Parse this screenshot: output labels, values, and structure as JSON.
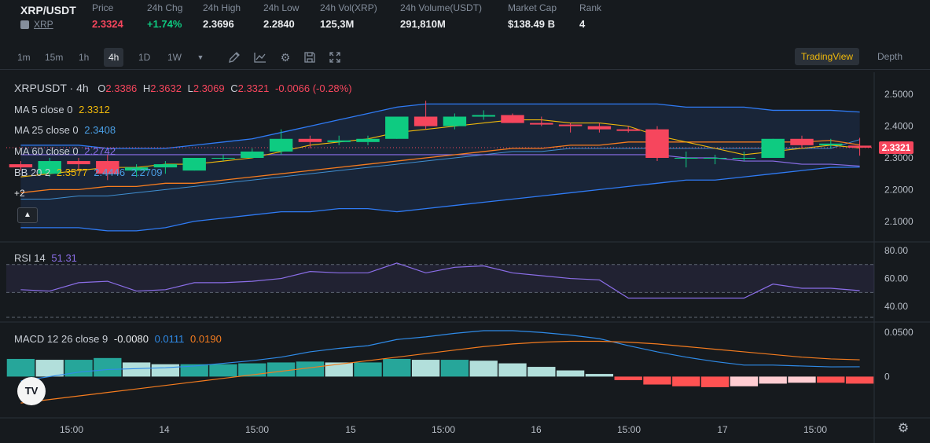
{
  "ticker": {
    "symbol": "XRP/USDT",
    "coin_link": "XRP",
    "stats": [
      {
        "label": "Price",
        "value": "2.3324",
        "color": "red"
      },
      {
        "label": "24h Chg",
        "value": "+1.74%",
        "color": "green"
      },
      {
        "label": "24h High",
        "value": "2.3696",
        "color": ""
      },
      {
        "label": "24h Low",
        "value": "2.2840",
        "color": ""
      },
      {
        "label": "24h Vol(XRP)",
        "value": "125,3M",
        "color": ""
      },
      {
        "label": "24h Volume(USDT)",
        "value": "291,810M",
        "color": ""
      },
      {
        "label": "Market Cap",
        "value": "$138.49 B",
        "color": ""
      },
      {
        "label": "Rank",
        "value": "4",
        "color": ""
      }
    ]
  },
  "toolbar": {
    "timeframes": [
      "1m",
      "15m",
      "1h",
      "4h",
      "1D",
      "1W"
    ],
    "active_timeframe": "4h",
    "icons": [
      "chevron-down-icon",
      "pencil-icon",
      "indicator-icon",
      "gear-icon",
      "save-icon",
      "expand-icon"
    ],
    "view_tradingview": "TradingView",
    "view_depth": "Depth"
  },
  "legend": {
    "symbol_line": "XRPUSDT · 4h",
    "o_label": "O",
    "o_value": "2.3386",
    "h_label": "H",
    "h_value": "2.3632",
    "l_label": "L",
    "l_value": "2.3069",
    "c_label": "C",
    "c_value": "2.3321",
    "change": "-0.0066 (-0.28%)",
    "ma5_label": "MA 5 close 0",
    "ma5_value": "2.3312",
    "ma25_label": "MA 25 close 0",
    "ma25_value": "2.3408",
    "ma60_label": "MA 60 close 0",
    "ma60_value": "2.2742",
    "bb_label": "BB 20 2",
    "bb_mid": "2.3577",
    "bb_up": "2.4446",
    "bb_low": "2.2709",
    "more": "+2",
    "rsi_label": "RSI 14",
    "rsi_value": "51.31",
    "macd_label": "MACD 12 26 close 9",
    "macd_value": "-0.0080",
    "macd_signal": "0.0111",
    "macd_hist": "0.0190"
  },
  "price_axis": [
    "2.5000",
    "2.4000",
    "2.3000",
    "2.2000",
    "2.1000"
  ],
  "rsi_axis": [
    "80.00",
    "60.00",
    "40.00"
  ],
  "macd_axis": [
    "0.0500",
    "0"
  ],
  "time_axis": [
    "15:00",
    "14",
    "15:00",
    "15",
    "15:00",
    "16",
    "15:00",
    "17",
    "15:00"
  ],
  "last_price_tag": "2.3321",
  "colors": {
    "up": "#0ecb81",
    "down": "#f6465d",
    "ma5": "#f0b90b",
    "ma25": "#4a9fe5",
    "ma60": "#8b6ee8",
    "bb": "#2f7bf5",
    "rsi": "#8b6ee8",
    "macd": "#2f8be8",
    "signal": "#f57c1f"
  },
  "chart_data": {
    "type": "candlestick",
    "candles": [
      {
        "o": 2.28,
        "h": 2.29,
        "l": 2.26,
        "c": 2.27
      },
      {
        "o": 2.25,
        "h": 2.3,
        "l": 2.24,
        "c": 2.29
      },
      {
        "o": 2.29,
        "h": 2.3,
        "l": 2.26,
        "c": 2.28
      },
      {
        "o": 2.29,
        "h": 2.31,
        "l": 2.23,
        "c": 2.25
      },
      {
        "o": 2.26,
        "h": 2.28,
        "l": 2.24,
        "c": 2.27
      },
      {
        "o": 2.27,
        "h": 2.29,
        "l": 2.25,
        "c": 2.28
      },
      {
        "o": 2.26,
        "h": 2.3,
        "l": 2.26,
        "c": 2.3
      },
      {
        "o": 2.3,
        "h": 2.31,
        "l": 2.29,
        "c": 2.3
      },
      {
        "o": 2.3,
        "h": 2.33,
        "l": 2.3,
        "c": 2.32
      },
      {
        "o": 2.32,
        "h": 2.39,
        "l": 2.31,
        "c": 2.36
      },
      {
        "o": 2.36,
        "h": 2.37,
        "l": 2.33,
        "c": 2.35
      },
      {
        "o": 2.35,
        "h": 2.37,
        "l": 2.34,
        "c": 2.355
      },
      {
        "o": 2.35,
        "h": 2.37,
        "l": 2.34,
        "c": 2.36
      },
      {
        "o": 2.36,
        "h": 2.43,
        "l": 2.36,
        "c": 2.43
      },
      {
        "o": 2.43,
        "h": 2.48,
        "l": 2.39,
        "c": 2.4
      },
      {
        "o": 2.4,
        "h": 2.44,
        "l": 2.39,
        "c": 2.43
      },
      {
        "o": 2.43,
        "h": 2.45,
        "l": 2.42,
        "c": 2.435
      },
      {
        "o": 2.435,
        "h": 2.44,
        "l": 2.41,
        "c": 2.41
      },
      {
        "o": 2.41,
        "h": 2.43,
        "l": 2.4,
        "c": 2.405
      },
      {
        "o": 2.405,
        "h": 2.41,
        "l": 2.38,
        "c": 2.4
      },
      {
        "o": 2.4,
        "h": 2.41,
        "l": 2.38,
        "c": 2.39
      },
      {
        "o": 2.39,
        "h": 2.4,
        "l": 2.38,
        "c": 2.385
      },
      {
        "o": 2.39,
        "h": 2.4,
        "l": 2.29,
        "c": 2.3
      },
      {
        "o": 2.3,
        "h": 2.32,
        "l": 2.27,
        "c": 2.3
      },
      {
        "o": 2.3,
        "h": 2.31,
        "l": 2.28,
        "c": 2.3
      },
      {
        "o": 2.3,
        "h": 2.32,
        "l": 2.29,
        "c": 2.3
      },
      {
        "o": 2.3,
        "h": 2.36,
        "l": 2.3,
        "c": 2.36
      },
      {
        "o": 2.36,
        "h": 2.37,
        "l": 2.33,
        "c": 2.34
      },
      {
        "o": 2.34,
        "h": 2.36,
        "l": 2.33,
        "c": 2.345
      },
      {
        "o": 2.3386,
        "h": 2.3632,
        "l": 2.3069,
        "c": 2.3321
      }
    ],
    "ma5": [
      2.24,
      2.25,
      2.26,
      2.27,
      2.27,
      2.28,
      2.28,
      2.29,
      2.3,
      2.32,
      2.34,
      2.35,
      2.36,
      2.38,
      2.39,
      2.4,
      2.41,
      2.42,
      2.42,
      2.41,
      2.41,
      2.4,
      2.37,
      2.35,
      2.33,
      2.31,
      2.32,
      2.33,
      2.34,
      2.3312
    ],
    "ma25": [
      2.19,
      2.2,
      2.2,
      2.21,
      2.21,
      2.22,
      2.22,
      2.23,
      2.24,
      2.25,
      2.26,
      2.27,
      2.28,
      2.29,
      2.3,
      2.31,
      2.32,
      2.33,
      2.33,
      2.34,
      2.34,
      2.35,
      2.35,
      2.35,
      2.35,
      2.35,
      2.35,
      2.35,
      2.355,
      2.3408
    ],
    "ma60": [
      2.31,
      2.31,
      2.31,
      2.31,
      2.31,
      2.31,
      2.31,
      2.31,
      2.31,
      2.31,
      2.31,
      2.31,
      2.31,
      2.31,
      2.31,
      2.31,
      2.31,
      2.31,
      2.31,
      2.31,
      2.31,
      2.31,
      2.31,
      2.3,
      2.3,
      2.29,
      2.29,
      2.28,
      2.28,
      2.2742
    ],
    "bb_up": [
      2.34,
      2.34,
      2.34,
      2.33,
      2.33,
      2.33,
      2.34,
      2.35,
      2.36,
      2.38,
      2.4,
      2.42,
      2.44,
      2.46,
      2.47,
      2.47,
      2.47,
      2.47,
      2.47,
      2.47,
      2.47,
      2.47,
      2.47,
      2.46,
      2.46,
      2.46,
      2.45,
      2.45,
      2.45,
      2.4446
    ],
    "bb_mid": [
      2.17,
      2.17,
      2.18,
      2.18,
      2.19,
      2.2,
      2.21,
      2.22,
      2.23,
      2.24,
      2.25,
      2.26,
      2.27,
      2.28,
      2.29,
      2.3,
      2.31,
      2.32,
      2.32,
      2.33,
      2.33,
      2.33,
      2.33,
      2.33,
      2.33,
      2.33,
      2.33,
      2.33,
      2.33,
      2.3577
    ],
    "bb_low": [
      2.08,
      2.08,
      2.08,
      2.07,
      2.07,
      2.08,
      2.1,
      2.11,
      2.12,
      2.13,
      2.13,
      2.14,
      2.14,
      2.13,
      2.14,
      2.15,
      2.16,
      2.17,
      2.18,
      2.19,
      2.2,
      2.21,
      2.22,
      2.23,
      2.23,
      2.24,
      2.25,
      2.26,
      2.27,
      2.2709
    ],
    "rsi": [
      52,
      51,
      57,
      58,
      51,
      52,
      57,
      57,
      58,
      60,
      65,
      64,
      64,
      71,
      64,
      68,
      69,
      64,
      62,
      60,
      59,
      46,
      46,
      46,
      46,
      46,
      56,
      53,
      53,
      51.31
    ],
    "macd": [
      -0.005,
      0,
      0.005,
      0.008,
      0.009,
      0.01,
      0.012,
      0.015,
      0.018,
      0.022,
      0.028,
      0.032,
      0.035,
      0.042,
      0.045,
      0.049,
      0.052,
      0.052,
      0.05,
      0.047,
      0.043,
      0.035,
      0.028,
      0.022,
      0.017,
      0.013,
      0.013,
      0.012,
      0.011,
      0.0111
    ],
    "signal": [
      -0.03,
      -0.026,
      -0.022,
      -0.018,
      -0.014,
      -0.01,
      -0.006,
      -0.002,
      0.002,
      0.006,
      0.01,
      0.014,
      0.018,
      0.022,
      0.026,
      0.03,
      0.034,
      0.037,
      0.039,
      0.04,
      0.04,
      0.039,
      0.037,
      0.034,
      0.031,
      0.028,
      0.025,
      0.022,
      0.02,
      0.019
    ],
    "hist": [
      0.02,
      0.019,
      0.019,
      0.021,
      0.016,
      0.014,
      0.014,
      0.014,
      0.015,
      0.016,
      0.017,
      0.016,
      0.016,
      0.02,
      0.019,
      0.019,
      0.018,
      0.015,
      0.011,
      0.007,
      0.003,
      -0.004,
      -0.009,
      -0.011,
      -0.012,
      -0.011,
      -0.008,
      -0.007,
      -0.007,
      -0.008
    ],
    "price_ylim": [
      2.04,
      2.56
    ],
    "rsi_ylim": [
      30,
      85
    ],
    "macd_ylim": [
      -0.045,
      0.06
    ]
  }
}
